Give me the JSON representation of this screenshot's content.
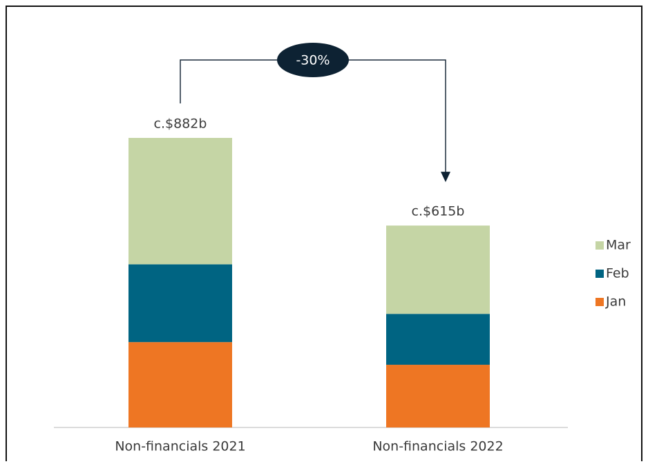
{
  "chart_data": {
    "type": "stacked_bar",
    "categories": [
      "Non-financials 2021",
      "Non-financials 2022"
    ],
    "series": [
      {
        "name": "Jan",
        "color": "#ee7623",
        "values": [
          260,
          191
        ]
      },
      {
        "name": "Feb",
        "color": "#006482",
        "values": [
          237,
          155
        ]
      },
      {
        "name": "Mar",
        "color": "#c5d5a5",
        "values": [
          385,
          269
        ]
      }
    ],
    "total_labels": [
      "c.$882b",
      "c.$615b"
    ],
    "change_label": "-30%",
    "legend": "right"
  }
}
